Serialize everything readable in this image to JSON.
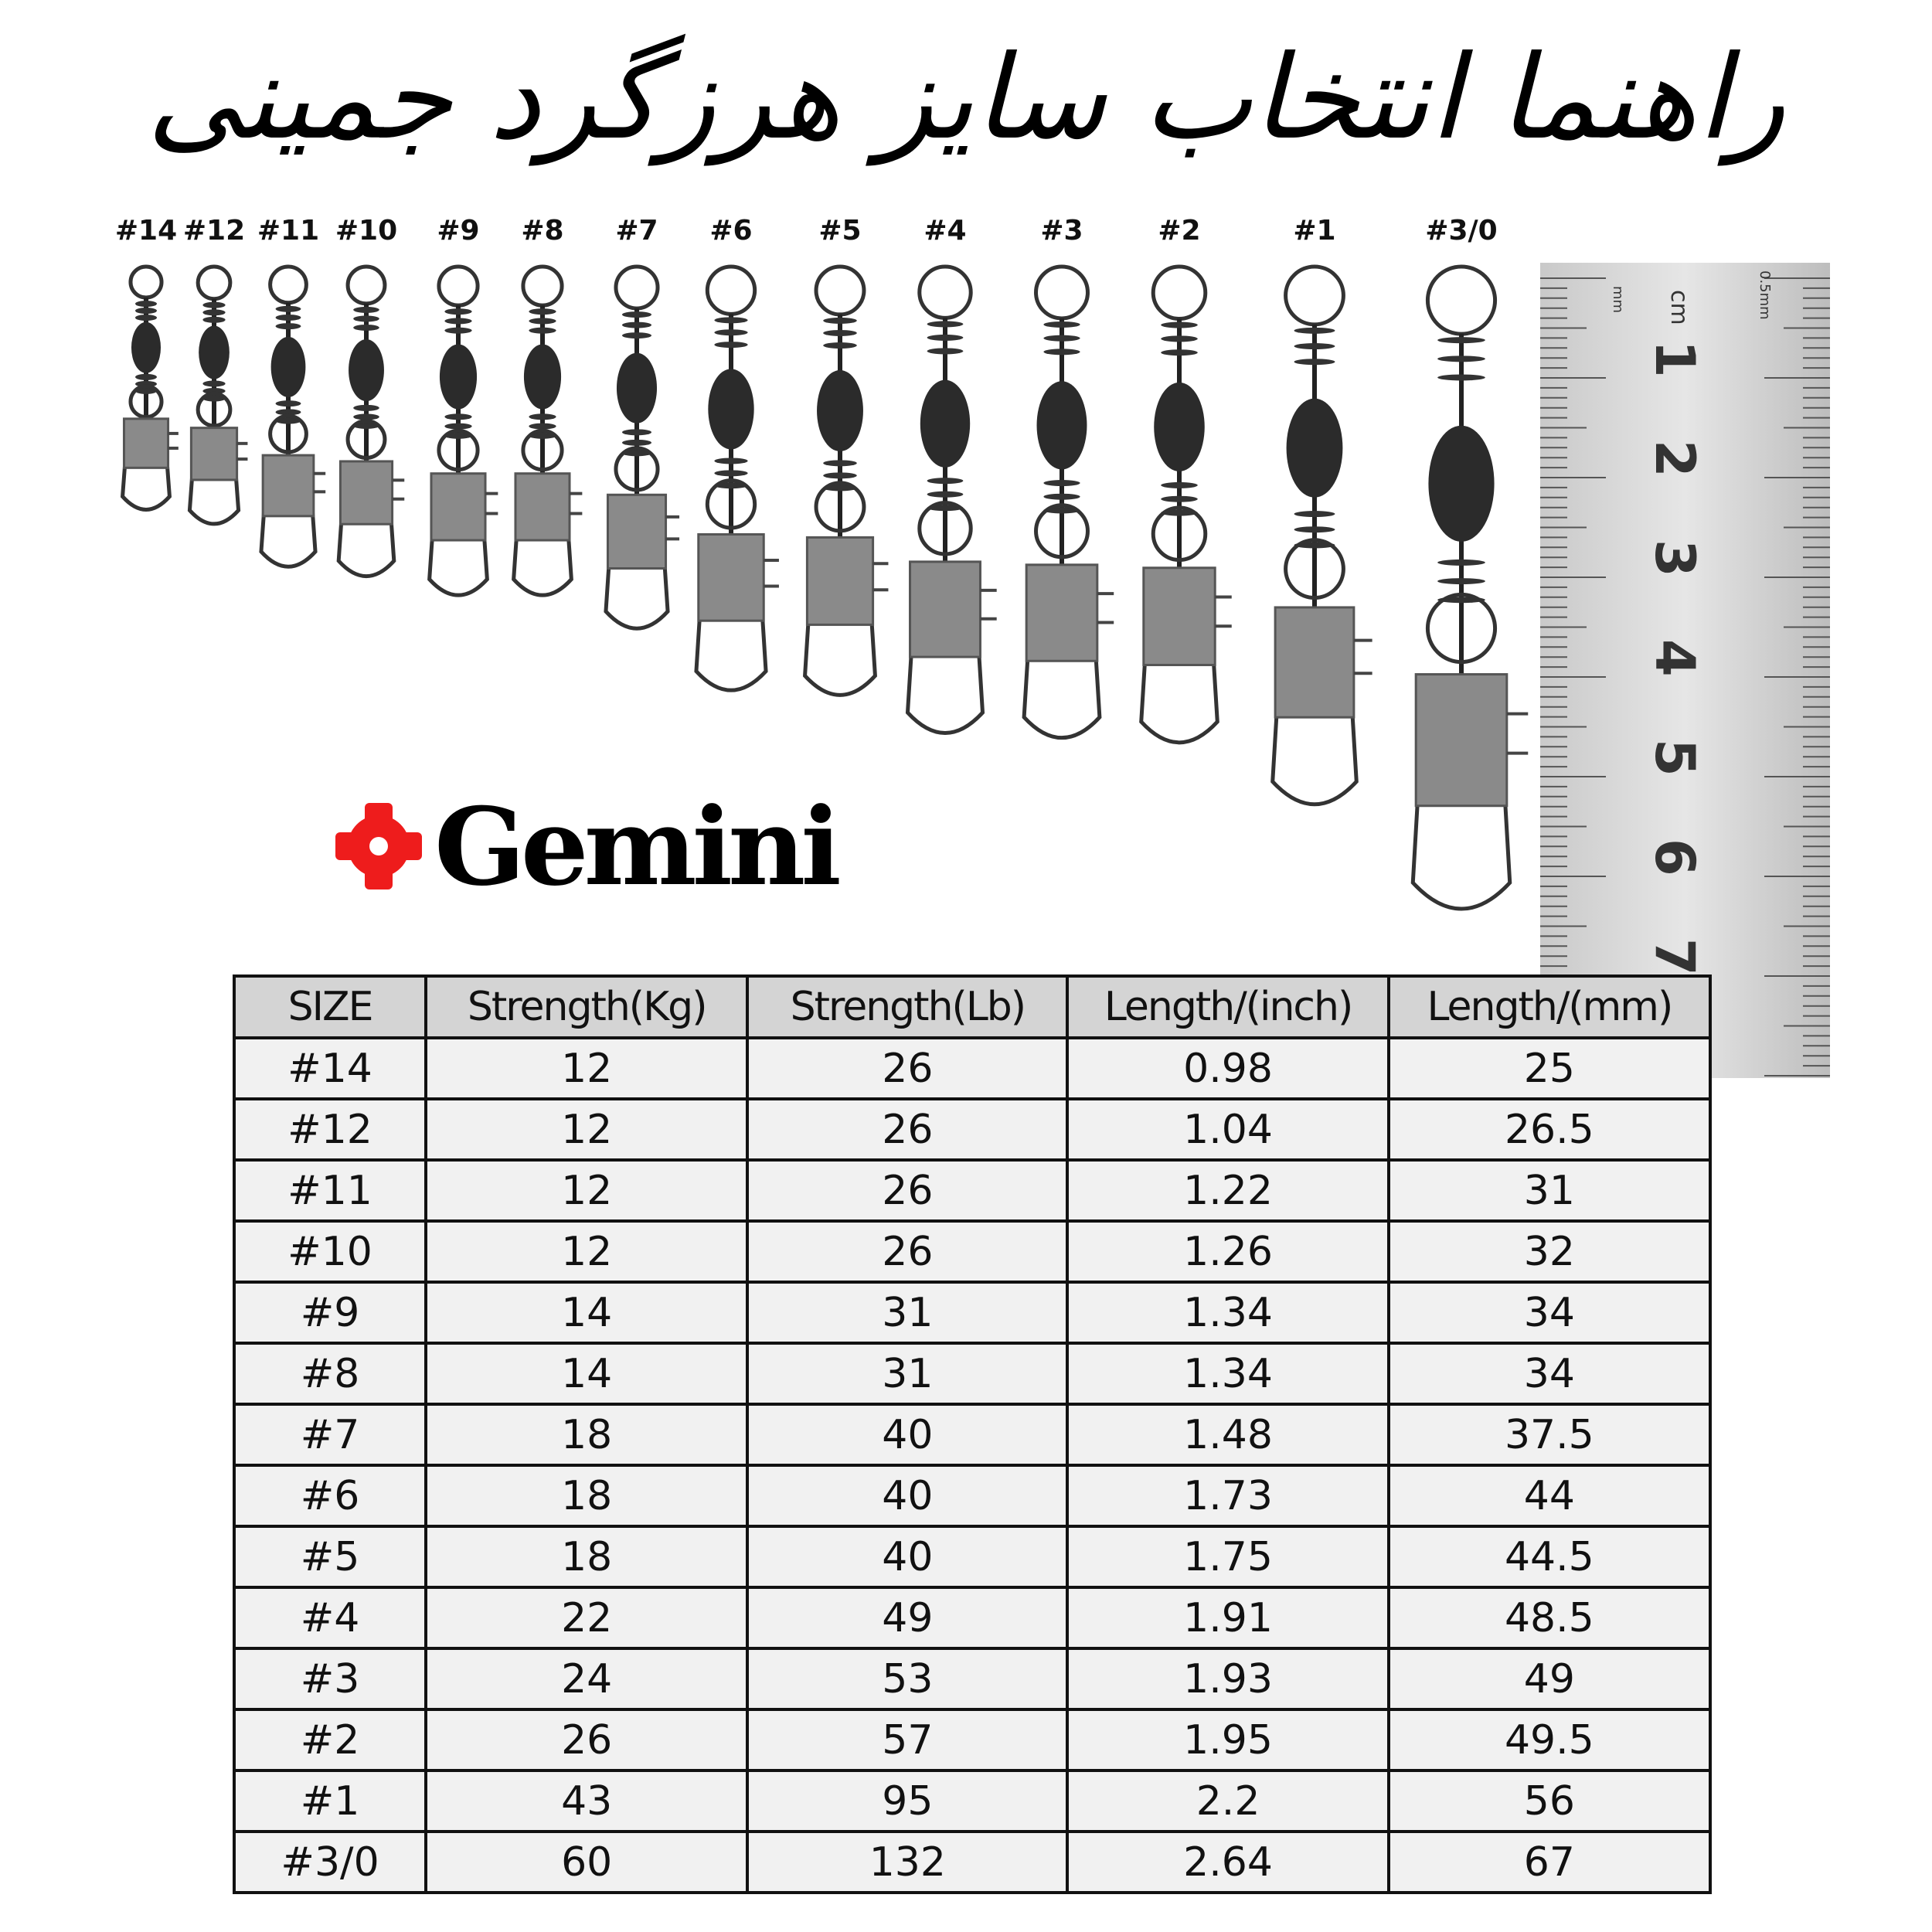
{
  "title": "راهنما انتخاب سایز هرزگرد جمینی",
  "brand": {
    "name": "Gemini",
    "logo_color": "#ee1c1c"
  },
  "swivel_sizes": [
    "#14",
    "#12",
    "#11",
    "#10",
    "#9",
    "#8",
    "#7",
    "#6",
    "#5",
    "#4",
    "#3",
    "#2",
    "#1",
    "#3/0"
  ],
  "ruler": {
    "unit_label": "cm",
    "mm_label": "mm",
    "half_mm_label": "0.5mm",
    "numbers": [
      "1",
      "2",
      "3",
      "4",
      "5",
      "6",
      "7"
    ]
  },
  "table": {
    "headers": [
      "SIZE",
      "Strength(Kg)",
      "Strength(Lb)",
      "Length/(inch)",
      "Length/(mm)"
    ],
    "rows": [
      [
        "#14",
        "12",
        "26",
        "0.98",
        "25"
      ],
      [
        "#12",
        "12",
        "26",
        "1.04",
        "26.5"
      ],
      [
        "#11",
        "12",
        "26",
        "1.22",
        "31"
      ],
      [
        "#10",
        "12",
        "26",
        "1.26",
        "32"
      ],
      [
        "#9",
        "14",
        "31",
        "1.34",
        "34"
      ],
      [
        "#8",
        "14",
        "31",
        "1.34",
        "34"
      ],
      [
        "#7",
        "18",
        "40",
        "1.48",
        "37.5"
      ],
      [
        "#6",
        "18",
        "40",
        "1.73",
        "44"
      ],
      [
        "#5",
        "18",
        "40",
        "1.75",
        "44.5"
      ],
      [
        "#4",
        "22",
        "49",
        "1.91",
        "48.5"
      ],
      [
        "#3",
        "24",
        "53",
        "1.93",
        "49"
      ],
      [
        "#2",
        "26",
        "57",
        "1.95",
        "49.5"
      ],
      [
        "#1",
        "43",
        "95",
        "2.2",
        "56"
      ],
      [
        "#3/0",
        "60",
        "132",
        "2.64",
        "67"
      ]
    ]
  }
}
